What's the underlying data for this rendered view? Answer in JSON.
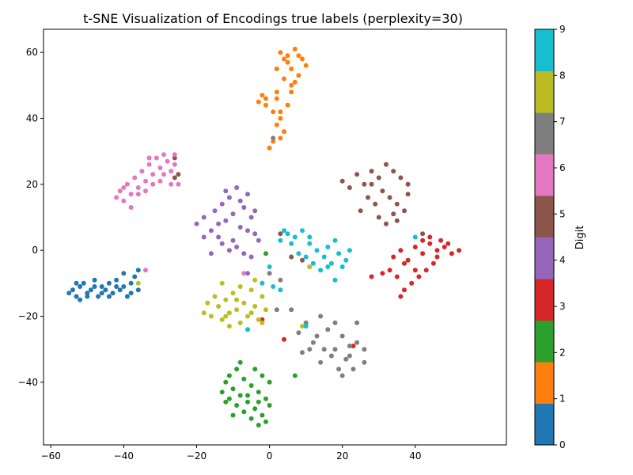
{
  "chart_data": {
    "type": "scatter",
    "title": "t-SNE Visualization of Encodings true labels (perplexity=30)",
    "xlabel": "",
    "ylabel": "",
    "xlim": [
      -62,
      65
    ],
    "ylim": [
      -59,
      67
    ],
    "xticks": [
      -60,
      -40,
      -20,
      0,
      20,
      40
    ],
    "yticks": [
      -40,
      -20,
      0,
      20,
      40,
      60
    ],
    "grid": false,
    "colorbar": {
      "label": "Digit",
      "range": [
        0,
        9
      ],
      "ticks": [
        0,
        1,
        2,
        3,
        4,
        5,
        6,
        7,
        8,
        9
      ],
      "colors": [
        "#1f77b4",
        "#ff7f0e",
        "#2ca02c",
        "#d62728",
        "#9467bd",
        "#8c564b",
        "#e377c2",
        "#7f7f7f",
        "#bcbd22",
        "#17becf"
      ]
    },
    "series": [
      {
        "digit": 0,
        "color": "#1f77b4",
        "points": [
          [
            -55,
            -13
          ],
          [
            -54,
            -12
          ],
          [
            -53,
            -14
          ],
          [
            -52,
            -11
          ],
          [
            -52,
            -15
          ],
          [
            -51,
            -10
          ],
          [
            -50,
            -13
          ],
          [
            -49,
            -12
          ],
          [
            -48,
            -9
          ],
          [
            -47,
            -14
          ],
          [
            -46,
            -11
          ],
          [
            -45,
            -12
          ],
          [
            -44,
            -10
          ],
          [
            -43,
            -13
          ],
          [
            -42,
            -9
          ],
          [
            -41,
            -12
          ],
          [
            -40,
            -11
          ],
          [
            -39,
            -14
          ],
          [
            -38,
            -10
          ],
          [
            -37,
            -8
          ],
          [
            -36,
            -12
          ],
          [
            -40,
            -7
          ],
          [
            -46,
            -13
          ],
          [
            -50,
            -14
          ],
          [
            -44,
            -14
          ],
          [
            -42,
            -11
          ],
          [
            -38,
            -13
          ],
          [
            -53,
            -10
          ],
          [
            -48,
            -11
          ],
          [
            -36,
            -6
          ]
        ]
      },
      {
        "digit": 1,
        "color": "#ff7f0e",
        "points": [
          [
            3,
            60
          ],
          [
            5,
            59
          ],
          [
            7,
            61
          ],
          [
            9,
            58
          ],
          [
            10,
            56
          ],
          [
            6,
            55
          ],
          [
            8,
            53
          ],
          [
            4,
            52
          ],
          [
            6,
            50
          ],
          [
            2,
            48
          ],
          [
            -2,
            47
          ],
          [
            -3,
            45
          ],
          [
            -1,
            44
          ],
          [
            1,
            42
          ],
          [
            3,
            40
          ],
          [
            2,
            38
          ],
          [
            4,
            36
          ],
          [
            3,
            34
          ],
          [
            1,
            33
          ],
          [
            0,
            31
          ],
          [
            5,
            57
          ],
          [
            7,
            51
          ],
          [
            2,
            46
          ],
          [
            8,
            59
          ],
          [
            4,
            58
          ],
          [
            -1,
            46
          ],
          [
            5,
            44
          ],
          [
            3,
            42
          ],
          [
            6,
            48
          ],
          [
            2,
            55
          ]
        ]
      },
      {
        "digit": 2,
        "color": "#2ca02c",
        "points": [
          [
            -12,
            -40
          ],
          [
            -11,
            -38
          ],
          [
            -10,
            -42
          ],
          [
            -9,
            -36
          ],
          [
            -8,
            -44
          ],
          [
            -7,
            -39
          ],
          [
            -6,
            -46
          ],
          [
            -5,
            -41
          ],
          [
            -4,
            -48
          ],
          [
            -3,
            -43
          ],
          [
            -2,
            -50
          ],
          [
            -1,
            -45
          ],
          [
            0,
            -47
          ],
          [
            -1,
            -52
          ],
          [
            -3,
            -53
          ],
          [
            -5,
            -51
          ],
          [
            -7,
            -49
          ],
          [
            -9,
            -47
          ],
          [
            -11,
            -45
          ],
          [
            -13,
            -43
          ],
          [
            -2,
            -38
          ],
          [
            -4,
            -36
          ],
          [
            0,
            -40
          ],
          [
            -8,
            -34
          ],
          [
            -6,
            -44
          ],
          [
            -3,
            -46
          ],
          [
            -10,
            -50
          ],
          [
            -1,
            -1
          ],
          [
            7,
            -38
          ],
          [
            -12,
            -46
          ]
        ]
      },
      {
        "digit": 3,
        "color": "#d62728",
        "points": [
          [
            34,
            -2
          ],
          [
            36,
            0
          ],
          [
            38,
            -3
          ],
          [
            40,
            1
          ],
          [
            42,
            -1
          ],
          [
            44,
            2
          ],
          [
            46,
            0
          ],
          [
            48,
            1
          ],
          [
            50,
            -1
          ],
          [
            52,
            0
          ],
          [
            45,
            -4
          ],
          [
            43,
            -6
          ],
          [
            41,
            -8
          ],
          [
            39,
            -10
          ],
          [
            37,
            -12
          ],
          [
            35,
            -8
          ],
          [
            33,
            -6
          ],
          [
            44,
            4
          ],
          [
            47,
            3
          ],
          [
            49,
            2
          ],
          [
            37,
            -4
          ],
          [
            40,
            -6
          ],
          [
            42,
            3
          ],
          [
            46,
            -2
          ],
          [
            36,
            -14
          ],
          [
            28,
            -8
          ],
          [
            31,
            -7
          ],
          [
            4,
            -27
          ],
          [
            23,
            -29
          ],
          [
            -2,
            -21
          ]
        ]
      },
      {
        "digit": 4,
        "color": "#9467bd",
        "points": [
          [
            -20,
            8
          ],
          [
            -18,
            10
          ],
          [
            -16,
            6
          ],
          [
            -15,
            12
          ],
          [
            -14,
            4
          ],
          [
            -13,
            14
          ],
          [
            -12,
            9
          ],
          [
            -11,
            16
          ],
          [
            -10,
            11
          ],
          [
            -9,
            19
          ],
          [
            -8,
            7
          ],
          [
            -7,
            13
          ],
          [
            -6,
            17
          ],
          [
            -5,
            10
          ],
          [
            -4,
            5
          ],
          [
            -3,
            3
          ],
          [
            -13,
            2
          ],
          [
            -11,
            0
          ],
          [
            -9,
            1
          ],
          [
            -7,
            -1
          ],
          [
            -5,
            -2
          ],
          [
            -16,
            -1
          ],
          [
            -18,
            4
          ],
          [
            -12,
            18
          ],
          [
            -8,
            15
          ],
          [
            -6,
            6
          ],
          [
            -10,
            3
          ],
          [
            -14,
            8
          ],
          [
            -6,
            -7
          ],
          [
            -4,
            12
          ]
        ]
      },
      {
        "digit": 5,
        "color": "#8c564b",
        "points": [
          [
            20,
            21
          ],
          [
            22,
            19
          ],
          [
            24,
            23
          ],
          [
            26,
            20
          ],
          [
            28,
            24
          ],
          [
            30,
            22
          ],
          [
            32,
            26
          ],
          [
            34,
            24
          ],
          [
            36,
            22
          ],
          [
            38,
            20
          ],
          [
            31,
            18
          ],
          [
            33,
            16
          ],
          [
            35,
            14
          ],
          [
            37,
            12
          ],
          [
            29,
            14
          ],
          [
            27,
            16
          ],
          [
            25,
            12
          ],
          [
            30,
            10
          ],
          [
            32,
            8
          ],
          [
            34,
            11
          ],
          [
            35,
            9
          ],
          [
            38,
            17
          ],
          [
            28,
            20
          ],
          [
            -26,
            28
          ],
          [
            -25,
            23
          ],
          [
            3,
            5
          ],
          [
            6,
            -2
          ],
          [
            9,
            -3
          ],
          [
            42,
            5
          ],
          [
            -26,
            22
          ]
        ]
      },
      {
        "digit": 6,
        "color": "#e377c2",
        "points": [
          [
            -42,
            16
          ],
          [
            -41,
            18
          ],
          [
            -40,
            15
          ],
          [
            -39,
            20
          ],
          [
            -38,
            17
          ],
          [
            -37,
            22
          ],
          [
            -36,
            19
          ],
          [
            -35,
            24
          ],
          [
            -34,
            21
          ],
          [
            -33,
            26
          ],
          [
            -32,
            23
          ],
          [
            -31,
            28
          ],
          [
            -30,
            25
          ],
          [
            -29,
            29
          ],
          [
            -28,
            27
          ],
          [
            -27,
            24
          ],
          [
            -26,
            29
          ],
          [
            -25,
            20
          ],
          [
            -27,
            20
          ],
          [
            -30,
            21
          ],
          [
            -34,
            18
          ],
          [
            -38,
            13
          ],
          [
            -36,
            17
          ],
          [
            -32,
            20
          ],
          [
            -29,
            23
          ],
          [
            -26,
            26
          ],
          [
            -40,
            19
          ],
          [
            -33,
            28
          ],
          [
            -34,
            -6
          ],
          [
            -7,
            -7
          ]
        ]
      },
      {
        "digit": 7,
        "color": "#7f7f7f",
        "points": [
          [
            8,
            -25
          ],
          [
            10,
            -22
          ],
          [
            12,
            -28
          ],
          [
            14,
            -20
          ],
          [
            16,
            -24
          ],
          [
            18,
            -30
          ],
          [
            20,
            -26
          ],
          [
            22,
            -32
          ],
          [
            24,
            -28
          ],
          [
            26,
            -34
          ],
          [
            23,
            -36
          ],
          [
            21,
            -33
          ],
          [
            19,
            -36
          ],
          [
            17,
            -32
          ],
          [
            15,
            -30
          ],
          [
            13,
            -26
          ],
          [
            11,
            -30
          ],
          [
            9,
            -31
          ],
          [
            24,
            -22
          ],
          [
            26,
            -30
          ],
          [
            20,
            -38
          ],
          [
            14,
            -34
          ],
          [
            18,
            -22
          ],
          [
            22,
            -29
          ],
          [
            6,
            -18
          ],
          [
            3,
            -9
          ],
          [
            1,
            34
          ],
          [
            0,
            -7
          ],
          [
            2,
            -18
          ],
          [
            11,
            -5
          ]
        ]
      },
      {
        "digit": 8,
        "color": "#bcbd22",
        "points": [
          [
            -18,
            -19
          ],
          [
            -16,
            -20
          ],
          [
            -14,
            -17
          ],
          [
            -13,
            -21
          ],
          [
            -12,
            -15
          ],
          [
            -11,
            -19
          ],
          [
            -10,
            -13
          ],
          [
            -9,
            -18
          ],
          [
            -8,
            -22
          ],
          [
            -7,
            -16
          ],
          [
            -6,
            -20
          ],
          [
            -5,
            -12
          ],
          [
            -4,
            -17
          ],
          [
            -3,
            -21
          ],
          [
            -2,
            -14
          ],
          [
            -1,
            -18
          ],
          [
            -15,
            -14
          ],
          [
            -13,
            -10
          ],
          [
            -11,
            -23
          ],
          [
            -8,
            -11
          ],
          [
            -6,
            -24
          ],
          [
            -4,
            -9
          ],
          [
            -2,
            -22
          ],
          [
            -9,
            -15
          ],
          [
            -17,
            -16
          ],
          [
            -12,
            -20
          ],
          [
            9,
            -23
          ],
          [
            11,
            -5
          ],
          [
            -36,
            -10
          ],
          [
            -5,
            -19
          ]
        ]
      },
      {
        "digit": 9,
        "color": "#17becf",
        "points": [
          [
            3,
            3
          ],
          [
            5,
            5
          ],
          [
            7,
            4
          ],
          [
            9,
            6
          ],
          [
            11,
            2
          ],
          [
            13,
            0
          ],
          [
            15,
            -2
          ],
          [
            17,
            -4
          ],
          [
            19,
            -1
          ],
          [
            21,
            -3
          ],
          [
            10,
            -2
          ],
          [
            12,
            -4
          ],
          [
            14,
            -6
          ],
          [
            16,
            1
          ],
          [
            18,
            3
          ],
          [
            20,
            -5
          ],
          [
            8,
            -1
          ],
          [
            6,
            2
          ],
          [
            4,
            6
          ],
          [
            22,
            0
          ],
          [
            16,
            -5
          ],
          [
            11,
            4
          ],
          [
            18,
            -9
          ],
          [
            0,
            -5
          ],
          [
            1,
            -11
          ],
          [
            3,
            -12
          ],
          [
            -2,
            -10
          ],
          [
            -6,
            -24
          ],
          [
            10,
            -23
          ],
          [
            40,
            4
          ]
        ]
      }
    ]
  }
}
